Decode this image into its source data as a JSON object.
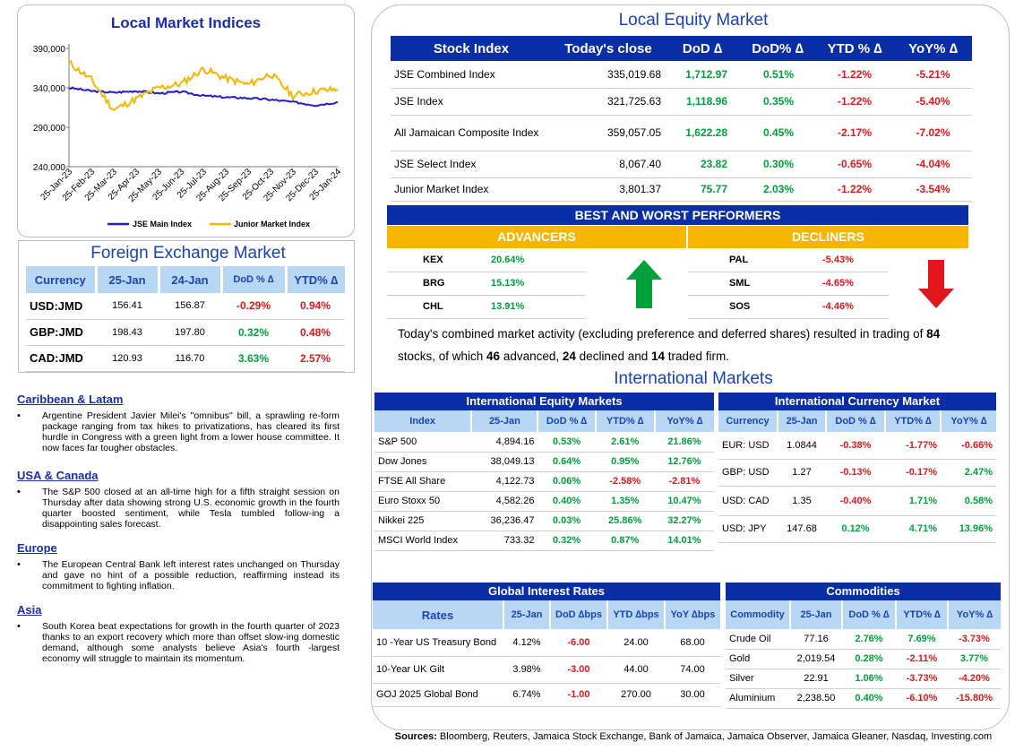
{
  "chart": {
    "title": "Local Market Indices",
    "y_ticks": [
      "390,000",
      "340,000",
      "290,000",
      "240,000"
    ],
    "x_ticks": [
      "25-Jan-23",
      "25-Feb-23",
      "25-Mar-23",
      "25-Apr-23",
      "25-May-23",
      "25-Jun-23",
      "25-Jul-23",
      "25-Aug-23",
      "25-Sep-23",
      "25-Oct-23",
      "25-Nov-23",
      "25-Dec-23",
      "25-Jan-24"
    ],
    "legend": [
      "JSE Main Index",
      "Junior Market Index"
    ],
    "colors": {
      "main": "#1f1fd1",
      "junior": "#f6b600"
    }
  },
  "chart_data": {
    "type": "line",
    "x": [
      "25-Jan-23",
      "25-Feb-23",
      "25-Mar-23",
      "25-Apr-23",
      "25-May-23",
      "25-Jun-23",
      "25-Jul-23",
      "25-Aug-23",
      "25-Sep-23",
      "25-Oct-23",
      "25-Nov-23",
      "25-Dec-23",
      "25-Jan-24"
    ],
    "ylim": [
      240000,
      390000
    ],
    "series": [
      {
        "name": "JSE Main Index",
        "values": [
          340000,
          336000,
          334000,
          336000,
          333000,
          335000,
          330000,
          328000,
          327000,
          325000,
          322000,
          318000,
          321726
        ]
      },
      {
        "name": "Junior Market Index",
        "values": [
          372000,
          350000,
          312000,
          326000,
          340000,
          345000,
          364000,
          352000,
          344000,
          358000,
          330000,
          336000,
          338000
        ]
      }
    ]
  },
  "equity": {
    "title": "Local Equity Market",
    "headers": [
      "Stock Index",
      "Today's close",
      "DoD  ∆",
      "DoD% ∆",
      "YTD % ∆",
      "YoY% ∆"
    ],
    "rows": [
      {
        "name": "JSE Combined Index",
        "close": "335,019.68",
        "dod": "1,712.97",
        "dodp": "0.51%",
        "ytd": "-1.22%",
        "yoy": "-5.21%"
      },
      {
        "name": "JSE Index",
        "close": "321,725.63",
        "dod": "1,118.96",
        "dodp": "0.35%",
        "ytd": "-1.22%",
        "yoy": "-5.40%"
      },
      {
        "name": "All Jamaican Composite Index",
        "close": "359,057.05",
        "dod": "1,622.28",
        "dodp": "0.45%",
        "ytd": "-2.17%",
        "yoy": "-7.02%"
      },
      {
        "name": "JSE Select Index",
        "close": "8,067.40",
        "dod": "23.82",
        "dodp": "0.30%",
        "ytd": "-0.65%",
        "yoy": "-4.04%"
      },
      {
        "name": "Junior Market Index",
        "close": "3,801.37",
        "dod": "75.77",
        "dodp": "2.03%",
        "ytd": "-1.22%",
        "yoy": "-3.54%"
      }
    ]
  },
  "performers": {
    "title": "BEST AND WORST PERFORMERS",
    "advancers_label": "ADVANCERS",
    "decliners_label": "DECLINERS",
    "advancers": [
      {
        "sym": "KEX",
        "pct": "20.64%"
      },
      {
        "sym": "BRG",
        "pct": "15.13%"
      },
      {
        "sym": "CHL",
        "pct": "13.91%"
      }
    ],
    "decliners": [
      {
        "sym": "PAL",
        "pct": "-5.43%"
      },
      {
        "sym": "SML",
        "pct": "-4.65%"
      },
      {
        "sym": "SOS",
        "pct": "-4.46%"
      }
    ],
    "arrow_colors": {
      "up": "#00a13a",
      "down": "#e2171b"
    }
  },
  "summary": {
    "t1": "Today's combined market activity (excluding preference and deferred shares) resulted in trading of ",
    "n_total": "84",
    "t2": "stocks, of which ",
    "n_adv": "46",
    "t3": " advanced, ",
    "n_dec": "24",
    "t4": " declined and ",
    "n_firm": "14",
    "t5": " traded firm."
  },
  "international": {
    "title": "International Markets",
    "equity": {
      "title": "International Equity Markets",
      "headers": [
        "Index",
        "25-Jan",
        "DoD % ∆",
        "YTD% ∆",
        "YoY% ∆"
      ],
      "rows": [
        {
          "name": "S&P 500",
          "val": "4,894.16",
          "dod": "0.53%",
          "ytd": "2.61%",
          "yoy": "21.86%"
        },
        {
          "name": "Dow Jones",
          "val": "38,049.13",
          "dod": "0.64%",
          "ytd": "0.95%",
          "yoy": "12.76%"
        },
        {
          "name": "FTSE All Share",
          "val": "4,122.73",
          "dod": "0.06%",
          "ytd": "-2.58%",
          "yoy": "-2.81%"
        },
        {
          "name": "Euro Stoxx 50",
          "val": "4,582.26",
          "dod": "0.40%",
          "ytd": "1.35%",
          "yoy": "10.47%"
        },
        {
          "name": "Nikkei 225",
          "val": "36,236.47",
          "dod": "0.03%",
          "ytd": "25.86%",
          "yoy": "32.27%"
        },
        {
          "name": "MSCI World Index",
          "val": "733.32",
          "dod": "0.32%",
          "ytd": "0.87%",
          "yoy": "14.01%"
        }
      ]
    },
    "currency": {
      "title": "International Currency Market",
      "headers": [
        "Currency",
        "25-Jan",
        "DoD % ∆",
        "YTD% ∆",
        "YoY% ∆"
      ],
      "rows": [
        {
          "name": "EUR: USD",
          "val": "1.0844",
          "dod": "-0.38%",
          "ytd": "-1.77%",
          "yoy": "-0.66%"
        },
        {
          "name": "GBP: USD",
          "val": "1.27",
          "dod": "-0.13%",
          "ytd": "-0.17%",
          "yoy": "2.47%"
        },
        {
          "name": "USD: CAD",
          "val": "1.35",
          "dod": "-0.40%",
          "ytd": "1.71%",
          "yoy": "0.58%"
        },
        {
          "name": "USD: JPY",
          "val": "147.68",
          "dod": "0.12%",
          "ytd": "4.71%",
          "yoy": "13.96%"
        }
      ]
    },
    "rates": {
      "title": "Global Interest Rates",
      "headers": [
        "Rates",
        "25-Jan",
        "DoD ∆bps",
        "YTD ∆bps",
        "YoY ∆bps"
      ],
      "rows": [
        {
          "name": "10 -Year US Treasury Bond",
          "val": "4.12%",
          "dod": "-6.00",
          "ytd": "24.00",
          "yoy": "68.00"
        },
        {
          "name": "10-Year UK Gilt",
          "val": "3.98%",
          "dod": "-3.00",
          "ytd": "44.00",
          "yoy": "74.00"
        },
        {
          "name": "GOJ 2025 Global Bond",
          "val": "6.74%",
          "dod": "-1.00",
          "ytd": "270.00",
          "yoy": "30.00"
        }
      ]
    },
    "commodities": {
      "title": "Commodities",
      "headers": [
        "Commodity",
        "25-Jan",
        "DoD % ∆",
        "YTD% ∆",
        "YoY% ∆"
      ],
      "rows": [
        {
          "name": "Crude Oil",
          "val": "77.16",
          "dod": "2.76%",
          "ytd": "7.69%",
          "yoy": "-3.73%"
        },
        {
          "name": "Gold",
          "val": "2,019.54",
          "dod": "0.28%",
          "ytd": "-2.11%",
          "yoy": "3.77%"
        },
        {
          "name": "Silver",
          "val": "22.91",
          "dod": "1.06%",
          "ytd": "-3.73%",
          "yoy": "-4.20%"
        },
        {
          "name": "Aluminium",
          "val": "2,238.50",
          "dod": "0.40%",
          "ytd": "-6.10%",
          "yoy": "-15.80%"
        }
      ]
    }
  },
  "forex": {
    "title": "Foreign Exchange Market",
    "headers": [
      "Currency",
      "25-Jan",
      "24-Jan",
      "DoD % ∆",
      "YTD% ∆"
    ],
    "rows": [
      {
        "name": "USD:JMD",
        "v1": "156.41",
        "v2": "156.87",
        "dod": "-0.29%",
        "ytd": "0.94%"
      },
      {
        "name": "GBP:JMD",
        "v1": "198.43",
        "v2": "197.80",
        "dod": "0.32%",
        "ytd": "0.48%"
      },
      {
        "name": "CAD:JMD",
        "v1": "120.93",
        "v2": "116.70",
        "dod": "3.63%",
        "ytd": "2.57%"
      }
    ]
  },
  "news": [
    {
      "heading": "Caribbean & Latam",
      "text": "Argentine President Javier Milei's \"omnibus\" bill, a sprawling re-form package ranging from tax hikes to privatizations, has cleared its first hurdle in Congress with a green light from a lower house committee. It now faces far tougher obstacles."
    },
    {
      "heading": "USA & Canada",
      "text": "The S&P 500 closed at an all-time high for a fifth straight session on Thursday after data showing strong U.S. economic growth in the fourth quarter boosted sentiment, while Tesla tumbled follow-ing a disappointing sales forecast."
    },
    {
      "heading": "Europe",
      "text": "The European Central Bank left interest rates unchanged on Thursday and gave no hint of a possible reduction, reaffirming instead its commitment to fighting inflation."
    },
    {
      "heading": "Asia",
      "text": "South Korea beat expectations for growth in the fourth quarter of 2023 thanks to an export recovery which more than offset slow-ing domestic demand, although some analysts believe Asia's fourth -largest economy will struggle to maintain its momentum."
    }
  ],
  "sources": {
    "label": "Sources:",
    "text": " Bloomberg, Reuters, Jamaica Stock Exchange, Bank of Jamaica, Jamaica Observer, Jamaica Gleaner, Nasdaq, Investing.com"
  }
}
